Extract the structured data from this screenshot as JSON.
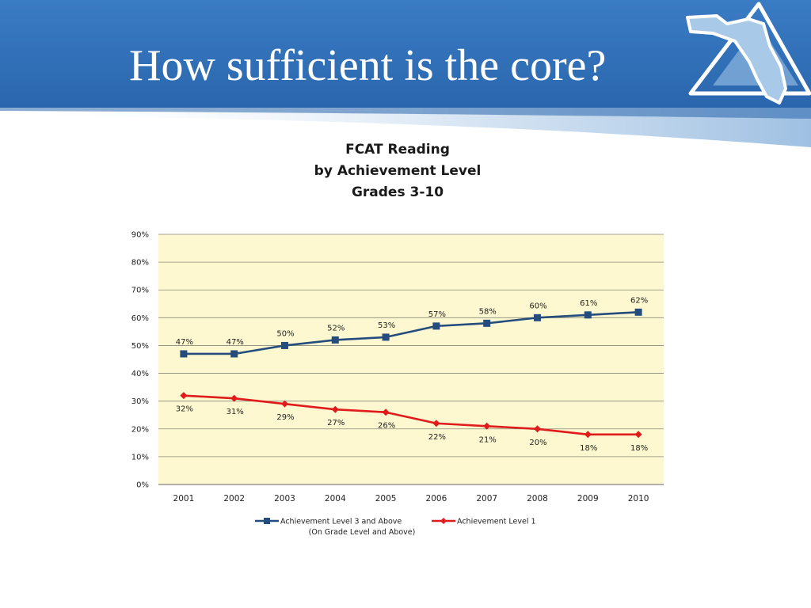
{
  "slide": {
    "title": "How sufficient is the core?"
  },
  "colors": {
    "header_blue": "#2e6fb6",
    "plot_background": "#fdf8cf",
    "series_1": "#244c7c",
    "series_2": "#e01b1b"
  },
  "icons": {
    "logo": "florida-state-triangle-logo"
  },
  "chart_data": {
    "type": "line",
    "title": [
      "FCAT Reading",
      "by Achievement Level",
      "Grades 3-10"
    ],
    "categories": [
      "2001",
      "2002",
      "2003",
      "2004",
      "2005",
      "2006",
      "2007",
      "2008",
      "2009",
      "2010"
    ],
    "ylim": [
      0,
      90
    ],
    "yticks": [
      0,
      10,
      20,
      30,
      40,
      50,
      60,
      70,
      80,
      90
    ],
    "ytick_labels": [
      "0%",
      "10%",
      "20%",
      "30%",
      "40%",
      "50%",
      "60%",
      "70%",
      "80%",
      "90%"
    ],
    "grid": true,
    "legend_position": "bottom",
    "series": [
      {
        "name": "Achievement Level 3 and Above",
        "name_line2": "(On Grade Level and Above)",
        "values": [
          47,
          47,
          50,
          52,
          53,
          57,
          58,
          60,
          61,
          62
        ],
        "labels": [
          "47%",
          "47%",
          "50%",
          "52%",
          "53%",
          "57%",
          "58%",
          "60%",
          "61%",
          "62%"
        ],
        "marker": "square",
        "label_position": "above"
      },
      {
        "name": "Achievement Level 1",
        "values": [
          32,
          31,
          29,
          27,
          26,
          22,
          21,
          20,
          18,
          18
        ],
        "labels": [
          "32%",
          "31%",
          "29%",
          "27%",
          "26%",
          "22%",
          "21%",
          "20%",
          "18%",
          "18%"
        ],
        "marker": "diamond",
        "label_position": "below"
      }
    ]
  }
}
